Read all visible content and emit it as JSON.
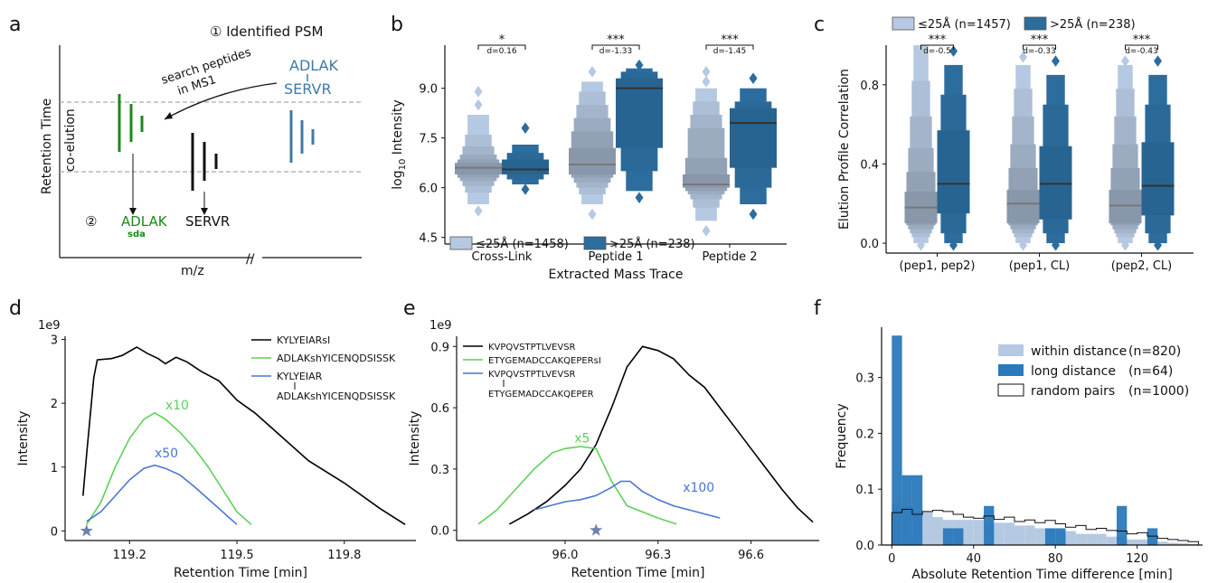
{
  "panels": {
    "a": {
      "letter": "a",
      "step1": "① Identified PSM",
      "annotation": [
        "search peptides",
        "in MS1"
      ],
      "crosslink_top": "ADLAK",
      "crosslink_bottom": "SERVR",
      "coelution": "co-elution",
      "ylabel": "Retention Time",
      "xlabel": "m/z",
      "step2": "②",
      "peptide1": "ADLAK",
      "peptide1_sub": "sda",
      "peptide2": "SERVR",
      "axis_break": "//"
    },
    "b": {
      "letter": "b"
    },
    "c": {
      "letter": "c"
    },
    "d": {
      "letter": "d"
    },
    "e": {
      "letter": "e"
    },
    "f": {
      "letter": "f"
    }
  },
  "chart_data": [
    {
      "id": "b",
      "type": "boxen",
      "xlabel": "Extracted Mass Trace",
      "ylabel": "log10 Intensity",
      "categories": [
        "Cross-Link",
        "Peptide 1",
        "Peptide 2"
      ],
      "yticks": [
        "4.5",
        "6.0",
        "7.5",
        "9.0"
      ],
      "ylim": [
        4.3,
        10.3
      ],
      "series": [
        {
          "name": "≤25Å (n=1458)",
          "color": "#b6c9e2",
          "boxes": [
            {
              "median": 6.6,
              "levels": [
                [
                  5.5,
                  8.2
                ],
                [
                  5.85,
                  7.6
                ],
                [
                  6.05,
                  7.25
                ],
                [
                  6.2,
                  7.0
                ],
                [
                  6.3,
                  6.85
                ],
                [
                  6.4,
                  6.75
                ]
              ],
              "outliers": [
                8.5,
                8.9,
                5.3
              ]
            },
            {
              "median": 6.7,
              "levels": [
                [
                  5.5,
                  9.2
                ],
                [
                  5.8,
                  8.9
                ],
                [
                  6.0,
                  8.5
                ],
                [
                  6.15,
                  8.1
                ],
                [
                  6.3,
                  7.7
                ],
                [
                  6.4,
                  7.2
                ]
              ],
              "outliers": [
                9.5,
                5.2
              ]
            },
            {
              "median": 6.1,
              "levels": [
                [
                  5.0,
                  9.0
                ],
                [
                  5.4,
                  8.6
                ],
                [
                  5.65,
                  8.2
                ],
                [
                  5.8,
                  7.8
                ],
                [
                  5.9,
                  6.9
                ],
                [
                  6.0,
                  6.4
                ]
              ],
              "outliers": [
                9.2,
                9.5,
                4.7
              ]
            }
          ]
        },
        {
          "name": ">25Å (n=238)",
          "color": "#2c6d9e",
          "boxes": [
            {
              "median": 6.55,
              "levels": [
                [
                  6.1,
                  7.3
                ],
                [
                  6.25,
                  7.05
                ],
                [
                  6.4,
                  6.85
                ]
              ],
              "outliers": [
                7.8,
                5.95
              ]
            },
            {
              "median": 9.0,
              "levels": [
                [
                  5.9,
                  9.6
                ],
                [
                  6.5,
                  9.5
                ],
                [
                  7.2,
                  9.3
                ]
              ],
              "outliers": [
                9.7,
                5.7
              ]
            },
            {
              "median": 7.95,
              "levels": [
                [
                  5.5,
                  9.0
                ],
                [
                  6.0,
                  8.6
                ],
                [
                  6.6,
                  8.4
                ]
              ],
              "outliers": [
                9.3,
                5.2
              ]
            }
          ]
        }
      ],
      "annotations": [
        {
          "stars": "*",
          "d": "d=0.16"
        },
        {
          "stars": "***",
          "d": "d=-1.33"
        },
        {
          "stars": "***",
          "d": "d=-1.45"
        }
      ]
    },
    {
      "id": "c",
      "type": "boxen",
      "xlabel": "",
      "ylabel": "Elution Profile Correlation",
      "categories": [
        "(pep1, pep2)",
        "(pep1, CL)",
        "(pep2, CL)"
      ],
      "yticks": [
        "0.0",
        "0.4",
        "0.8"
      ],
      "ylim": [
        -0.05,
        1.0
      ],
      "series": [
        {
          "name": "≤25Å (n=1457)",
          "color": "#b6c9e2",
          "boxes": [
            {
              "median": 0.18,
              "levels": [
                [
                  0.0,
                  1.0
                ],
                [
                  0.03,
                  0.82
                ],
                [
                  0.05,
                  0.64
                ],
                [
                  0.07,
                  0.48
                ],
                [
                  0.09,
                  0.36
                ],
                [
                  0.1,
                  0.26
                ]
              ],
              "outliers": [
                -0.01
              ]
            },
            {
              "median": 0.2,
              "levels": [
                [
                  0.0,
                  0.9
                ],
                [
                  0.03,
                  0.78
                ],
                [
                  0.05,
                  0.64
                ],
                [
                  0.07,
                  0.5
                ],
                [
                  0.09,
                  0.38
                ],
                [
                  0.1,
                  0.27
                ]
              ],
              "outliers": [
                0.94,
                -0.01
              ]
            },
            {
              "median": 0.19,
              "levels": [
                [
                  0.0,
                  0.9
                ],
                [
                  0.03,
                  0.78
                ],
                [
                  0.05,
                  0.64
                ],
                [
                  0.07,
                  0.5
                ],
                [
                  0.09,
                  0.38
                ],
                [
                  0.1,
                  0.27
                ]
              ],
              "outliers": [
                0.92,
                -0.01
              ]
            }
          ]
        },
        {
          "name": ">25Å (n=238)",
          "color": "#2c6d9e",
          "boxes": [
            {
              "median": 0.3,
              "levels": [
                [
                  0.0,
                  0.9
                ],
                [
                  0.05,
                  0.75
                ],
                [
                  0.15,
                  0.57
                ]
              ],
              "outliers": [
                0.97,
                -0.01
              ]
            },
            {
              "median": 0.3,
              "levels": [
                [
                  0.0,
                  0.85
                ],
                [
                  0.05,
                  0.7
                ],
                [
                  0.12,
                  0.49
                ]
              ],
              "outliers": [
                0.92,
                -0.01
              ]
            },
            {
              "median": 0.29,
              "levels": [
                [
                  0.0,
                  0.85
                ],
                [
                  0.05,
                  0.7
                ],
                [
                  0.14,
                  0.51
                ]
              ],
              "outliers": [
                0.92,
                -0.01
              ]
            }
          ]
        }
      ],
      "annotations": [
        {
          "stars": "***",
          "d": "d=-0.5"
        },
        {
          "stars": "***",
          "d": "d=-0.33"
        },
        {
          "stars": "***",
          "d": "d=-0.43"
        }
      ]
    },
    {
      "id": "d",
      "type": "line",
      "xlabel": "Retention Time [min]",
      "ylabel": "Intensity",
      "y_scale_label": "1e9",
      "xticks": [
        "119.2",
        "119.5",
        "119.8"
      ],
      "yticks": [
        "0",
        "1",
        "2",
        "3"
      ],
      "xlim": [
        119.02,
        120.0
      ],
      "ylim": [
        -0.15,
        3.05
      ],
      "legend": [
        {
          "label": "KYLYEIARsI",
          "color": "#000000"
        },
        {
          "label": "ADLAKshYICENQDSISSK",
          "color": "#5fcf5a"
        },
        {
          "label": "KYLYEIAR",
          "label2": "ADLAKshYICENQDSISSK",
          "color": "#4876d1"
        }
      ],
      "curve_labels": [
        {
          "text": "x10",
          "color": "#5fcf5a",
          "x": 119.3,
          "y": 1.9
        },
        {
          "text": "x50",
          "color": "#4876d1",
          "x": 119.27,
          "y": 1.15
        }
      ],
      "star": {
        "x": 119.08,
        "y": 0.0
      },
      "series": [
        {
          "name": "KYLYEIARsI",
          "color": "#000000",
          "x": [
            119.07,
            119.08,
            119.1,
            119.11,
            119.15,
            119.18,
            119.22,
            119.25,
            119.28,
            119.3,
            119.33,
            119.36,
            119.4,
            119.45,
            119.5,
            119.55,
            119.6,
            119.7,
            119.8,
            119.9,
            119.97
          ],
          "y": [
            0.55,
            1.2,
            2.4,
            2.68,
            2.7,
            2.75,
            2.88,
            2.78,
            2.7,
            2.62,
            2.72,
            2.65,
            2.5,
            2.35,
            2.05,
            1.85,
            1.6,
            1.1,
            0.75,
            0.35,
            0.1
          ]
        },
        {
          "name": "ADLAKshYICENQDSISSK",
          "color": "#5fcf5a",
          "x": [
            119.08,
            119.12,
            119.16,
            119.2,
            119.24,
            119.27,
            119.3,
            119.34,
            119.38,
            119.42,
            119.46,
            119.5,
            119.54
          ],
          "y": [
            0.1,
            0.45,
            1.0,
            1.45,
            1.75,
            1.85,
            1.75,
            1.55,
            1.3,
            1.0,
            0.65,
            0.3,
            0.1
          ]
        },
        {
          "name": "KYLYEIAR / ADLAKshYICENQDSISSK",
          "color": "#4876d1",
          "x": [
            119.08,
            119.12,
            119.16,
            119.2,
            119.24,
            119.27,
            119.3,
            119.34,
            119.38,
            119.42,
            119.46,
            119.5
          ],
          "y": [
            0.15,
            0.3,
            0.55,
            0.8,
            0.98,
            1.03,
            0.98,
            0.88,
            0.7,
            0.5,
            0.3,
            0.1
          ]
        }
      ]
    },
    {
      "id": "e",
      "type": "line",
      "xlabel": "Retention Time [min]",
      "ylabel": "Intensity",
      "y_scale_label": "1e9",
      "xticks": [
        "96.0",
        "96.3",
        "96.6"
      ],
      "yticks": [
        "0.0",
        "0.3",
        "0.6",
        "0.9"
      ],
      "xlim": [
        95.65,
        96.82
      ],
      "ylim": [
        -0.05,
        0.95
      ],
      "legend": [
        {
          "label": "KVPQVSTPTLVEVSR",
          "color": "#000000"
        },
        {
          "label": "ETYGEMADCCAKQEPERsI",
          "color": "#5fcf5a"
        },
        {
          "label": "KVPQVSTPTLVEVSR",
          "label2": "ETYGEMADCCAKQEPER",
          "color": "#4876d1"
        }
      ],
      "curve_labels": [
        {
          "text": "x5",
          "color": "#5fcf5a",
          "x": 96.03,
          "y": 0.43
        },
        {
          "text": "x100",
          "color": "#4876d1",
          "x": 96.38,
          "y": 0.19
        }
      ],
      "star": {
        "x": 96.1,
        "y": 0.0
      },
      "series": [
        {
          "name": "KVPQVSTPTLVEVSR",
          "color": "#000000",
          "x": [
            95.82,
            95.88,
            95.94,
            96.0,
            96.05,
            96.1,
            96.15,
            96.2,
            96.25,
            96.3,
            96.35,
            96.4,
            96.45,
            96.5,
            96.55,
            96.6,
            96.65,
            96.7,
            96.75,
            96.8
          ],
          "y": [
            0.03,
            0.08,
            0.14,
            0.22,
            0.3,
            0.42,
            0.6,
            0.8,
            0.9,
            0.88,
            0.84,
            0.76,
            0.7,
            0.6,
            0.5,
            0.4,
            0.3,
            0.2,
            0.11,
            0.04
          ]
        },
        {
          "name": "ETYGEMADCCAKQEPERsI",
          "color": "#5fcf5a",
          "x": [
            95.72,
            95.78,
            95.84,
            95.9,
            95.96,
            96.0,
            96.05,
            96.1,
            96.15,
            96.2,
            96.25,
            96.3,
            96.36
          ],
          "y": [
            0.03,
            0.1,
            0.2,
            0.3,
            0.38,
            0.4,
            0.41,
            0.4,
            0.24,
            0.12,
            0.09,
            0.06,
            0.03
          ]
        },
        {
          "name": "KVPQVSTPTLVEVSR / ETYGEMADCCAKQEPER",
          "color": "#4876d1",
          "x": [
            95.9,
            95.95,
            96.0,
            96.05,
            96.1,
            96.15,
            96.18,
            96.21,
            96.25,
            96.3,
            96.35,
            96.4,
            96.45,
            96.5
          ],
          "y": [
            0.1,
            0.12,
            0.14,
            0.15,
            0.17,
            0.21,
            0.24,
            0.24,
            0.19,
            0.15,
            0.12,
            0.1,
            0.08,
            0.06
          ]
        }
      ]
    },
    {
      "id": "f",
      "type": "histogram",
      "xlabel": "Absolute Retention Time difference [min]",
      "ylabel": "Frequency",
      "xticks": [
        "0",
        "40",
        "80",
        "120"
      ],
      "yticks": [
        "0.0",
        "0.1",
        "0.2",
        "0.3"
      ],
      "xlim": [
        -5,
        152
      ],
      "ylim": [
        0,
        0.39
      ],
      "bin_edges": [
        0,
        5,
        10,
        15,
        20,
        25,
        30,
        35,
        40,
        45,
        50,
        55,
        60,
        65,
        70,
        75,
        80,
        85,
        90,
        95,
        100,
        105,
        110,
        115,
        120,
        125,
        130,
        135,
        140,
        145,
        150
      ],
      "series": [
        {
          "name": "within distance",
          "label_n": "(n=820)",
          "color": "#b6c9e2",
          "values": [
            0.075,
            0.07,
            0.06,
            0.06,
            0.05,
            0.045,
            0.045,
            0.045,
            0.045,
            0.04,
            0.04,
            0.04,
            0.035,
            0.035,
            0.03,
            0.03,
            0.025,
            0.025,
            0.02,
            0.02,
            0.02,
            0.015,
            0.015,
            0.01,
            0.01,
            0.008,
            0.006,
            0.004,
            0.003,
            0.002
          ]
        },
        {
          "name": "long distance",
          "label_n": "(n=64)",
          "color": "#2a79bb",
          "values": [
            0.375,
            0.125,
            0.125,
            0.0,
            0.0,
            0.03,
            0.03,
            0.0,
            0.0,
            0.07,
            0.0,
            0.0,
            0.0,
            0.0,
            0.0,
            0.03,
            0.03,
            0.0,
            0.0,
            0.0,
            0.0,
            0.0,
            0.07,
            0.0,
            0.0,
            0.03,
            0.0,
            0.0,
            0.0,
            0.0
          ]
        },
        {
          "name": "random pairs",
          "label_n": "(n=1000)",
          "color": "#ffffff",
          "values": [
            0.058,
            0.064,
            0.055,
            0.06,
            0.062,
            0.06,
            0.055,
            0.05,
            0.048,
            0.052,
            0.046,
            0.05,
            0.042,
            0.045,
            0.04,
            0.044,
            0.038,
            0.032,
            0.035,
            0.028,
            0.03,
            0.026,
            0.025,
            0.02,
            0.022,
            0.016,
            0.012,
            0.01,
            0.008,
            0.006
          ]
        }
      ]
    }
  ]
}
